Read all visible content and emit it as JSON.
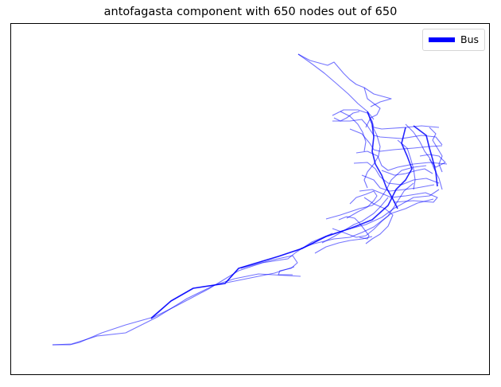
{
  "title": "antofagasta component with 650 nodes out of 650",
  "legend": {
    "label": "Bus",
    "color": "#0000ff"
  },
  "edge_color": "#0000ff"
}
